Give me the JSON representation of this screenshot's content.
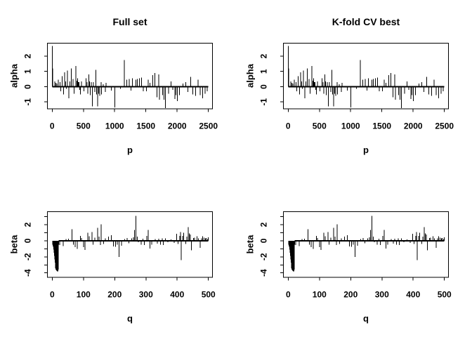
{
  "colors": {
    "foreground": "#000000",
    "background": "#ffffff"
  },
  "panels": [
    {
      "title": "Full set",
      "ylab": "alpha",
      "xlab": "p",
      "series": "alpha"
    },
    {
      "title": "K-fold CV best",
      "ylab": "alpha",
      "xlab": "p",
      "series": "alpha"
    },
    {
      "title": "",
      "ylab": "beta",
      "xlab": "q",
      "series": "beta"
    },
    {
      "title": "",
      "ylab": "beta",
      "xlab": "q",
      "series": "beta"
    }
  ],
  "chart_data": [
    {
      "type": "bar",
      "name": "alpha",
      "style": "vertical-spikes-from-zero",
      "xlabel": "p",
      "ylabel": "alpha",
      "xlim": [
        -76,
        2565
      ],
      "ylim": [
        -1.45,
        2.85
      ],
      "xticks": [
        0,
        500,
        1000,
        1500,
        2000,
        2500
      ],
      "yticks": [
        -1,
        0,
        1,
        2
      ],
      "ytick_labels": [
        "-1",
        "0",
        "1",
        "2"
      ],
      "grid": false,
      "baseline": [
        0,
        2500
      ],
      "points": [
        [
          2,
          2.66
        ],
        [
          8,
          1.2
        ],
        [
          42,
          0.35
        ],
        [
          60,
          0.25
        ],
        [
          78,
          0.2
        ],
        [
          98,
          0.45
        ],
        [
          124,
          0.3
        ],
        [
          135,
          -0.3
        ],
        [
          162,
          0.7
        ],
        [
          180,
          -0.5
        ],
        [
          199,
          0.95
        ],
        [
          218,
          0.35
        ],
        [
          230,
          -0.15
        ],
        [
          247,
          1.05
        ],
        [
          266,
          -0.75
        ],
        [
          285,
          0.35
        ],
        [
          304,
          1.2
        ],
        [
          334,
          0.5
        ],
        [
          353,
          -0.45
        ],
        [
          379,
          1.35
        ],
        [
          395,
          0.4
        ],
        [
          405,
          0.55
        ],
        [
          418,
          0.3
        ],
        [
          432,
          0.3
        ],
        [
          443,
          -0.2
        ],
        [
          454,
          -0.5
        ],
        [
          470,
          0.35
        ],
        [
          509,
          -0.3
        ],
        [
          540,
          0.55
        ],
        [
          558,
          0.3
        ],
        [
          572,
          -0.45
        ],
        [
          585,
          0.8
        ],
        [
          600,
          0.35
        ],
        [
          612,
          -0.55
        ],
        [
          628,
          0.3
        ],
        [
          645,
          -1.3
        ],
        [
          662,
          0.3
        ],
        [
          680,
          -0.35
        ],
        [
          697,
          1.1
        ],
        [
          712,
          -0.5
        ],
        [
          728,
          -1.3
        ],
        [
          746,
          -0.45
        ],
        [
          762,
          -0.6
        ],
        [
          783,
          0.3
        ],
        [
          790,
          -0.5
        ],
        [
          820,
          0.15
        ],
        [
          851,
          -0.35
        ],
        [
          862,
          0.25
        ],
        [
          944,
          -0.25
        ],
        [
          1005,
          -1.35
        ],
        [
          1095,
          -0.15
        ],
        [
          1155,
          1.75
        ],
        [
          1196,
          0.45
        ],
        [
          1236,
          0.5
        ],
        [
          1262,
          -0.25
        ],
        [
          1285,
          0.55
        ],
        [
          1340,
          0.45
        ],
        [
          1365,
          0.5
        ],
        [
          1397,
          0.55
        ],
        [
          1432,
          0.6
        ],
        [
          1458,
          -0.3
        ],
        [
          1506,
          -0.3
        ],
        [
          1537,
          0.45
        ],
        [
          1563,
          0.25
        ],
        [
          1608,
          0.75
        ],
        [
          1645,
          0.9
        ],
        [
          1675,
          -0.7
        ],
        [
          1705,
          0.8
        ],
        [
          1716,
          -0.85
        ],
        [
          1769,
          -0.55
        ],
        [
          1790,
          -0.85
        ],
        [
          1814,
          -1.4
        ],
        [
          1862,
          -0.45
        ],
        [
          1904,
          0.35
        ],
        [
          1930,
          -0.2
        ],
        [
          1964,
          -0.8
        ],
        [
          1982,
          -0.55
        ],
        [
          2001,
          -0.95
        ],
        [
          2035,
          -0.55
        ],
        [
          2091,
          0.2
        ],
        [
          2136,
          0.3
        ],
        [
          2173,
          -0.35
        ],
        [
          2215,
          0.65
        ],
        [
          2252,
          -0.5
        ],
        [
          2297,
          -0.6
        ],
        [
          2333,
          0.45
        ],
        [
          2371,
          -0.55
        ],
        [
          2409,
          -0.75
        ],
        [
          2446,
          -0.45
        ],
        [
          2480,
          -0.3
        ]
      ]
    },
    {
      "type": "bar",
      "name": "beta",
      "style": "vertical-spikes-from-zero",
      "xlabel": "q",
      "ylabel": "beta",
      "xlim": [
        -15.3,
        513
      ],
      "ylim": [
        -4.55,
        3.62
      ],
      "xticks": [
        0,
        100,
        200,
        300,
        400,
        500
      ],
      "yticks": [
        -4,
        -3,
        -2,
        -1,
        0,
        1,
        2,
        3
      ],
      "ytick_labels": [
        "-4",
        "",
        "-2",
        "",
        "0",
        "",
        "2",
        ""
      ],
      "grid": false,
      "baseline": [
        21,
        500
      ],
      "points": [
        [
          2,
          -0.5
        ],
        [
          3,
          -0.6
        ],
        [
          4,
          -0.8
        ],
        [
          5,
          -1.1
        ],
        [
          6,
          -1.5
        ],
        [
          7,
          -1.9
        ],
        [
          8,
          -2.3
        ],
        [
          9,
          -2.7
        ],
        [
          10,
          -3.1
        ],
        [
          11,
          -3.4
        ],
        [
          12,
          -3.6
        ],
        [
          13,
          -3.3
        ],
        [
          14,
          -3.7
        ],
        [
          15,
          -3.4
        ],
        [
          16,
          -3.8
        ],
        [
          17,
          -3.5
        ],
        [
          18,
          -3.8
        ],
        [
          19,
          -3.6
        ],
        [
          20,
          -3.2
        ],
        [
          21,
          -0.5
        ],
        [
          24,
          -0.55
        ],
        [
          35,
          -0.65
        ],
        [
          44,
          0.2
        ],
        [
          52,
          0.25
        ],
        [
          63,
          1.45
        ],
        [
          68,
          -0.5
        ],
        [
          73,
          -0.8
        ],
        [
          80,
          -1.0
        ],
        [
          90,
          0.6
        ],
        [
          94,
          0.35
        ],
        [
          100,
          -0.8
        ],
        [
          105,
          -1.15
        ],
        [
          114,
          1.0
        ],
        [
          119,
          0.55
        ],
        [
          127,
          1.1
        ],
        [
          131,
          -0.5
        ],
        [
          136,
          0.4
        ],
        [
          146,
          1.6
        ],
        [
          150,
          0.5
        ],
        [
          154,
          -0.55
        ],
        [
          157,
          2.05
        ],
        [
          165,
          -0.4
        ],
        [
          170,
          0.3
        ],
        [
          180,
          0.5
        ],
        [
          189,
          0.7
        ],
        [
          196,
          -0.7
        ],
        [
          203,
          -0.75
        ],
        [
          208,
          -0.5
        ],
        [
          214,
          -2.0
        ],
        [
          222,
          -0.6
        ],
        [
          232,
          0.2
        ],
        [
          240,
          0.35
        ],
        [
          245,
          -0.3
        ],
        [
          255,
          0.3
        ],
        [
          260,
          0.45
        ],
        [
          263,
          1.35
        ],
        [
          268,
          3.1
        ],
        [
          272,
          0.5
        ],
        [
          276,
          -0.2
        ],
        [
          285,
          -0.5
        ],
        [
          290,
          0.25
        ],
        [
          295,
          -0.55
        ],
        [
          303,
          0.6
        ],
        [
          307,
          1.35
        ],
        [
          313,
          -0.95
        ],
        [
          318,
          -0.5
        ],
        [
          330,
          0.2
        ],
        [
          336,
          -0.35
        ],
        [
          341,
          0.25
        ],
        [
          347,
          -0.5
        ],
        [
          352,
          0.3
        ],
        [
          356,
          -0.55
        ],
        [
          362,
          0.3
        ],
        [
          370,
          -0.2
        ],
        [
          380,
          0.15
        ],
        [
          390,
          -0.25
        ],
        [
          398,
          0.85
        ],
        [
          403,
          -0.4
        ],
        [
          408,
          0.6
        ],
        [
          411,
          1.1
        ],
        [
          413,
          -2.4
        ],
        [
          418,
          0.6
        ],
        [
          421,
          1.0
        ],
        [
          428,
          -0.4
        ],
        [
          431,
          0.5
        ],
        [
          436,
          1.7
        ],
        [
          439,
          0.9
        ],
        [
          442,
          0.8
        ],
        [
          446,
          -1.2
        ],
        [
          452,
          0.35
        ],
        [
          456,
          0.4
        ],
        [
          463,
          0.55
        ],
        [
          468,
          0.3
        ],
        [
          474,
          -0.9
        ],
        [
          478,
          0.3
        ],
        [
          482,
          0.55
        ],
        [
          486,
          0.4
        ],
        [
          490,
          0.3
        ],
        [
          493,
          0.35
        ],
        [
          497,
          0.2
        ],
        [
          500,
          0.45
        ]
      ]
    }
  ]
}
